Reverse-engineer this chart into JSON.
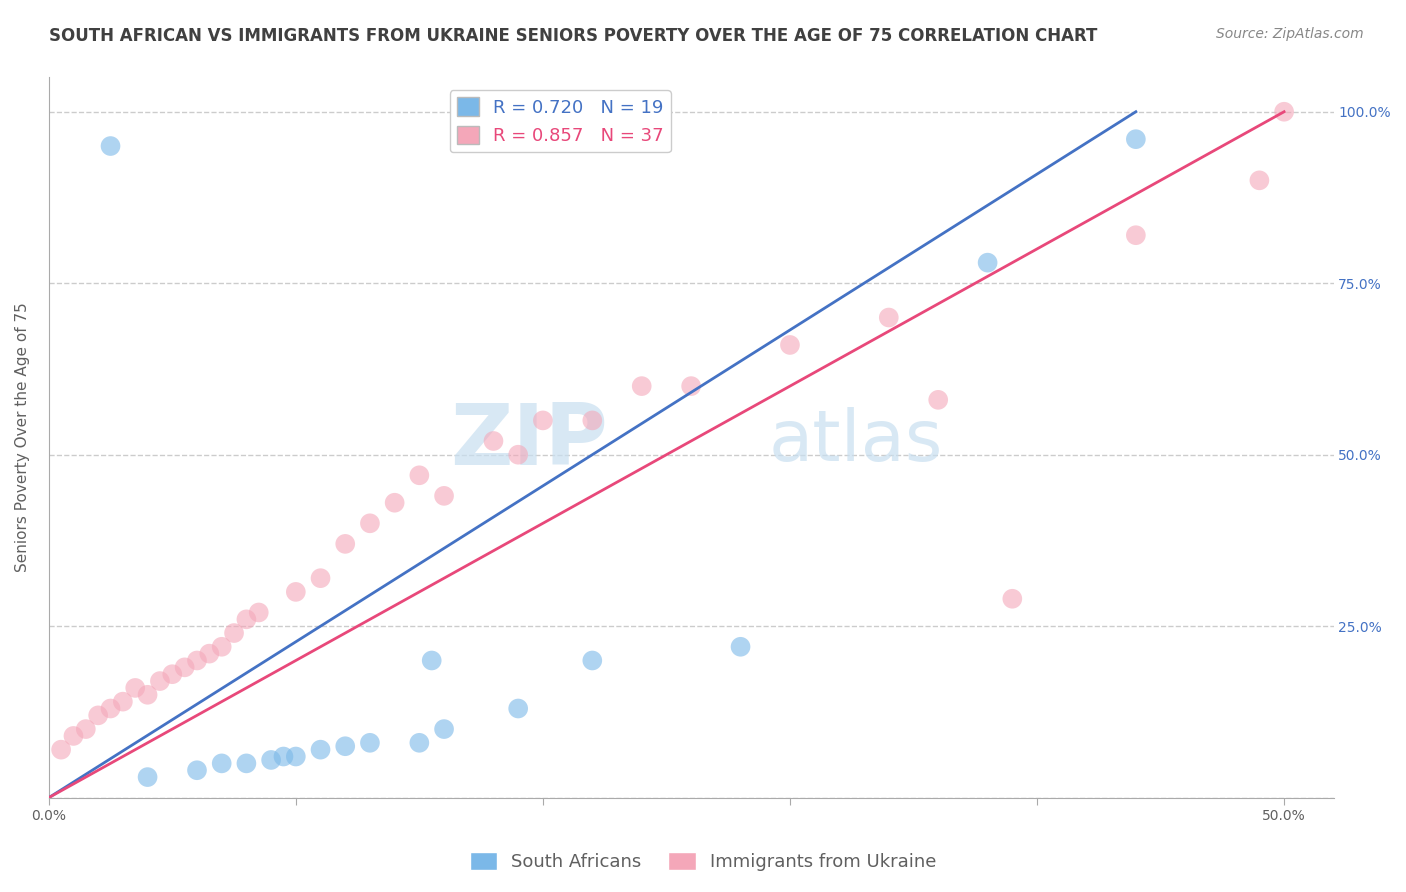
{
  "title": "SOUTH AFRICAN VS IMMIGRANTS FROM UKRAINE SENIORS POVERTY OVER THE AGE OF 75 CORRELATION CHART",
  "source": "Source: ZipAtlas.com",
  "ylabel": "Seniors Poverty Over the Age of 75",
  "xlim": [
    0.0,
    0.52
  ],
  "ylim": [
    0.0,
    1.05
  ],
  "xticks": [
    0.0,
    0.1,
    0.2,
    0.3,
    0.4,
    0.5
  ],
  "xticklabels": [
    "0.0%",
    "",
    "",
    "",
    "",
    "50.0%"
  ],
  "yticks": [
    0.0,
    0.25,
    0.5,
    0.75,
    1.0
  ],
  "yticklabels": [
    "",
    "25.0%",
    "50.0%",
    "75.0%",
    "100.0%"
  ],
  "blue_R": 0.72,
  "blue_N": 19,
  "pink_R": 0.857,
  "pink_N": 37,
  "blue_color": "#7BB8E8",
  "pink_color": "#F4A7B9",
  "blue_line_color": "#4472C4",
  "pink_line_color": "#E8487A",
  "grid_color": "#CCCCCC",
  "watermark_zip": "ZIP",
  "watermark_atlas": "atlas",
  "legend_blue_label": "South Africans",
  "legend_pink_label": "Immigrants from Ukraine",
  "blue_scatter_x": [
    0.025,
    0.04,
    0.06,
    0.07,
    0.08,
    0.09,
    0.095,
    0.1,
    0.11,
    0.12,
    0.13,
    0.15,
    0.155,
    0.16,
    0.19,
    0.22,
    0.28,
    0.38,
    0.44
  ],
  "blue_scatter_y": [
    0.95,
    0.03,
    0.04,
    0.05,
    0.05,
    0.055,
    0.06,
    0.06,
    0.07,
    0.075,
    0.08,
    0.08,
    0.2,
    0.1,
    0.13,
    0.2,
    0.22,
    0.78,
    0.96
  ],
  "pink_scatter_x": [
    0.005,
    0.01,
    0.015,
    0.02,
    0.025,
    0.03,
    0.035,
    0.04,
    0.045,
    0.05,
    0.055,
    0.06,
    0.065,
    0.07,
    0.075,
    0.08,
    0.085,
    0.1,
    0.11,
    0.12,
    0.13,
    0.14,
    0.15,
    0.16,
    0.18,
    0.19,
    0.2,
    0.22,
    0.24,
    0.26,
    0.3,
    0.34,
    0.36,
    0.39,
    0.44,
    0.49,
    0.5
  ],
  "pink_scatter_y": [
    0.07,
    0.09,
    0.1,
    0.12,
    0.13,
    0.14,
    0.16,
    0.15,
    0.17,
    0.18,
    0.19,
    0.2,
    0.21,
    0.22,
    0.24,
    0.26,
    0.27,
    0.3,
    0.32,
    0.37,
    0.4,
    0.43,
    0.47,
    0.44,
    0.52,
    0.5,
    0.55,
    0.55,
    0.6,
    0.6,
    0.66,
    0.7,
    0.58,
    0.29,
    0.82,
    0.9,
    1.0
  ],
  "blue_line_x": [
    0.0,
    0.44
  ],
  "blue_line_y": [
    0.0,
    1.0
  ],
  "pink_line_x": [
    0.0,
    0.5
  ],
  "pink_line_y": [
    0.0,
    1.0
  ],
  "title_fontsize": 12,
  "axis_label_fontsize": 11,
  "tick_fontsize": 10,
  "legend_fontsize": 13,
  "source_fontsize": 10,
  "title_color": "#404040",
  "tick_color": "#606060",
  "axis_label_color": "#606060"
}
